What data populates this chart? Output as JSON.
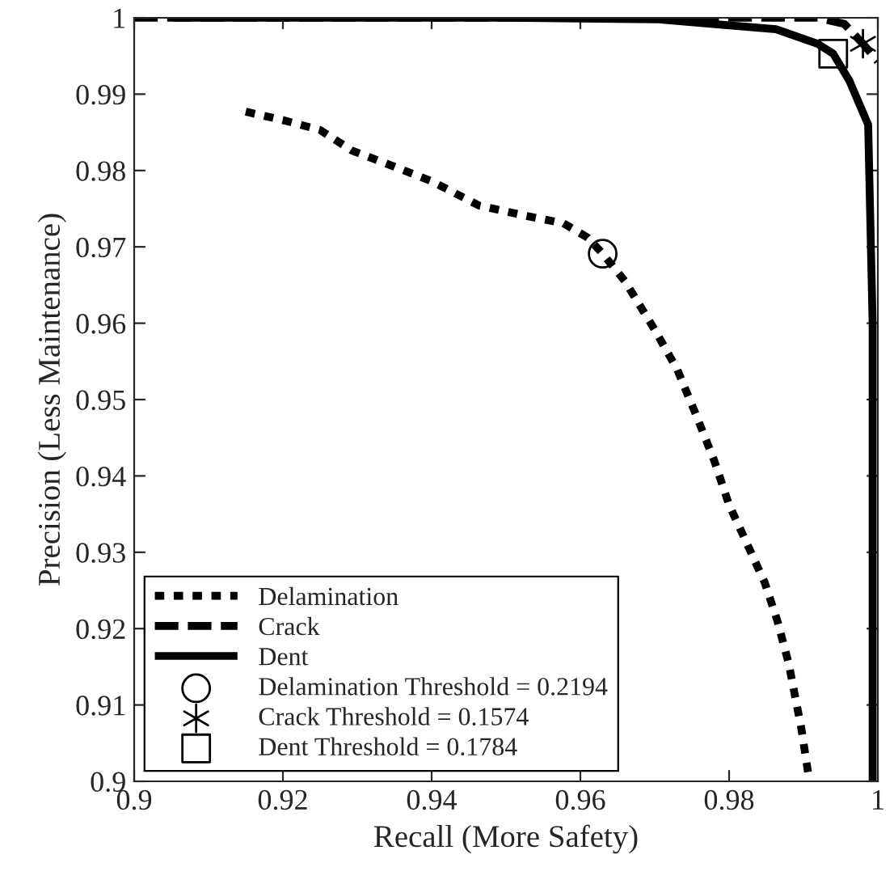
{
  "chart_data": {
    "type": "line",
    "xlabel": "Recall (More Safety)",
    "ylabel": "Precision (Less Maintenance)",
    "xlim": [
      0.9,
      1.0
    ],
    "xticks": [
      0.9,
      0.92,
      0.94,
      0.96,
      0.98,
      1
    ],
    "ylim": [
      0.9,
      1.0
    ],
    "yticks": [
      0.9,
      0.91,
      0.92,
      0.93,
      0.94,
      0.95,
      0.96,
      0.97,
      0.98,
      0.99,
      1
    ],
    "grid": false,
    "legend": "bottom left",
    "series": [
      {
        "name": "Delamination",
        "line_style": "dotted",
        "color": "#000000",
        "x": [
          0.915,
          0.92,
          0.925,
          0.9293,
          0.935,
          0.94,
          0.9464,
          0.952,
          0.9577,
          0.961,
          0.963,
          0.966,
          0.9699,
          0.973,
          0.9756,
          0.978,
          0.98,
          0.982,
          0.9848,
          0.9865,
          0.988,
          0.9897,
          0.9908
        ],
        "values": [
          0.9877,
          0.9866,
          0.9853,
          0.9826,
          0.9805,
          0.9786,
          0.9754,
          0.9742,
          0.9731,
          0.9712,
          0.9691,
          0.9655,
          0.9593,
          0.954,
          0.9479,
          0.942,
          0.9362,
          0.932,
          0.926,
          0.921,
          0.9155,
          0.907,
          0.9
        ]
      },
      {
        "name": "Crack",
        "line_style": "dashed",
        "color": "#000000",
        "x": [
          0.9,
          0.95,
          0.9919,
          0.9955,
          0.998,
          1.0
        ],
        "values": [
          1.0,
          1.0,
          1.0,
          0.9992,
          0.9966,
          0.9943
        ]
      },
      {
        "name": "Dent",
        "line_style": "solid",
        "color": "#000000",
        "x": [
          0.9053,
          0.95,
          0.9705,
          0.9778,
          0.9863,
          0.9919,
          0.994,
          0.9962,
          0.9987,
          0.9993,
          0.9993
        ],
        "values": [
          1.0,
          1.0,
          0.9998,
          0.9992,
          0.9985,
          0.9966,
          0.9953,
          0.9917,
          0.986,
          0.96,
          0.9
        ]
      },
      {
        "name": "Delamination Threshold = 0.2194",
        "type": "scatter",
        "marker": "circle",
        "color": "#000000",
        "x": [
          0.963
        ],
        "values": [
          0.9691
        ]
      },
      {
        "name": "Crack Threshold = 0.1574",
        "type": "scatter",
        "marker": "cross",
        "color": "#000000",
        "x": [
          0.998
        ],
        "values": [
          0.9966
        ]
      },
      {
        "name": "Dent Threshold = 0.1784",
        "type": "scatter",
        "marker": "square",
        "color": "#000000",
        "x": [
          0.994
        ],
        "values": [
          0.9953
        ]
      }
    ]
  }
}
